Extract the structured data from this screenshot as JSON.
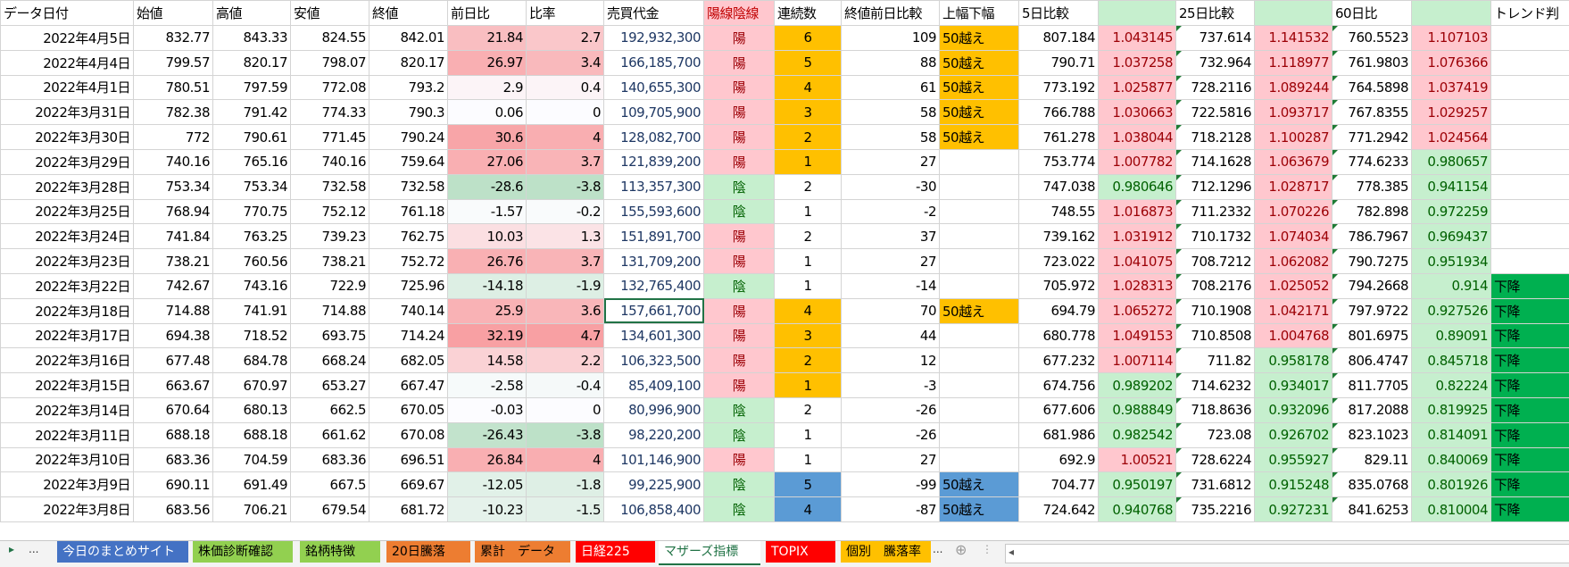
{
  "columns": [
    "データ日付",
    "始値",
    "高値",
    "安値",
    "終値",
    "前日比",
    "比率",
    "売買代金",
    "陽線陰線",
    "連続数",
    "終値前日比較",
    "上幅下幅",
    "5日比較",
    "",
    "25日比較",
    "",
    "60日比",
    "",
    "トレンド判"
  ],
  "colors": {
    "pink_bg": "#FFC7CE",
    "pink_text": "#9C0006",
    "green_bg": "#C6EFCE",
    "green_text": "#006100",
    "orange": "#FFC000",
    "blue": "#5B9BD5",
    "trend_green": "#00B050",
    "selected_border": "#217346"
  },
  "selected_cell": {
    "date": "2022年3月18日",
    "column": "売買代金"
  },
  "rows": [
    {
      "date": "2022年4月5日",
      "open": "832.77",
      "high": "843.33",
      "low": "824.55",
      "close": "842.01",
      "diff": "21.84",
      "ratio": "2.7",
      "volume": "192,932,300",
      "candle": "陽",
      "streak": "6",
      "streak_color": "orange",
      "close_diff": "109",
      "range": "50越え",
      "ma5": "807.184",
      "r5": "1.043145",
      "ma25": "737.614",
      "r25": "1.141532",
      "ma60": "760.5523",
      "r60": "1.107103",
      "trend": ""
    },
    {
      "date": "2022年4月4日",
      "open": "799.57",
      "high": "820.17",
      "low": "798.07",
      "close": "820.17",
      "diff": "26.97",
      "ratio": "3.4",
      "volume": "166,185,700",
      "candle": "陽",
      "streak": "5",
      "streak_color": "orange",
      "close_diff": "88",
      "range": "50越え",
      "ma5": "790.71",
      "r5": "1.037258",
      "ma25": "732.964",
      "r25": "1.118977",
      "ma60": "761.9803",
      "r60": "1.076366",
      "trend": ""
    },
    {
      "date": "2022年4月1日",
      "open": "780.51",
      "high": "797.59",
      "low": "772.08",
      "close": "793.2",
      "diff": "2.9",
      "ratio": "0.4",
      "volume": "140,655,300",
      "candle": "陽",
      "streak": "4",
      "streak_color": "orange",
      "close_diff": "61",
      "range": "50越え",
      "ma5": "773.192",
      "r5": "1.025877",
      "ma25": "728.2116",
      "r25": "1.089244",
      "ma60": "764.5898",
      "r60": "1.037419",
      "trend": ""
    },
    {
      "date": "2022年3月31日",
      "open": "782.38",
      "high": "791.42",
      "low": "774.33",
      "close": "790.3",
      "diff": "0.06",
      "ratio": "0",
      "volume": "109,705,900",
      "candle": "陽",
      "streak": "3",
      "streak_color": "orange",
      "close_diff": "58",
      "range": "50越え",
      "ma5": "766.788",
      "r5": "1.030663",
      "ma25": "722.5816",
      "r25": "1.093717",
      "ma60": "767.8355",
      "r60": "1.029257",
      "trend": ""
    },
    {
      "date": "2022年3月30日",
      "open": "772",
      "high": "790.61",
      "low": "771.45",
      "close": "790.24",
      "diff": "30.6",
      "ratio": "4",
      "volume": "128,082,700",
      "candle": "陽",
      "streak": "2",
      "streak_color": "orange",
      "close_diff": "58",
      "range": "50越え",
      "ma5": "761.278",
      "r5": "1.038044",
      "ma25": "718.2128",
      "r25": "1.100287",
      "ma60": "771.2942",
      "r60": "1.024564",
      "trend": ""
    },
    {
      "date": "2022年3月29日",
      "open": "740.16",
      "high": "765.16",
      "low": "740.16",
      "close": "759.64",
      "diff": "27.06",
      "ratio": "3.7",
      "volume": "121,839,200",
      "candle": "陽",
      "streak": "1",
      "streak_color": "orange",
      "close_diff": "27",
      "range": "",
      "ma5": "753.774",
      "r5": "1.007782",
      "ma25": "714.1628",
      "r25": "1.063679",
      "ma60": "774.6233",
      "r60": "0.980657",
      "trend": ""
    },
    {
      "date": "2022年3月28日",
      "open": "753.34",
      "high": "753.34",
      "low": "732.58",
      "close": "732.58",
      "diff": "-28.6",
      "ratio": "-3.8",
      "volume": "113,357,300",
      "candle": "陰",
      "streak": "2",
      "streak_color": "",
      "close_diff": "-30",
      "range": "",
      "ma5": "747.038",
      "r5": "0.980646",
      "ma25": "712.1296",
      "r25": "1.028717",
      "ma60": "778.385",
      "r60": "0.941154",
      "trend": ""
    },
    {
      "date": "2022年3月25日",
      "open": "768.94",
      "high": "770.75",
      "low": "752.12",
      "close": "761.18",
      "diff": "-1.57",
      "ratio": "-0.2",
      "volume": "155,593,600",
      "candle": "陰",
      "streak": "1",
      "streak_color": "",
      "close_diff": "-2",
      "range": "",
      "ma5": "748.55",
      "r5": "1.016873",
      "ma25": "711.2332",
      "r25": "1.070226",
      "ma60": "782.898",
      "r60": "0.972259",
      "trend": ""
    },
    {
      "date": "2022年3月24日",
      "open": "741.84",
      "high": "763.25",
      "low": "739.23",
      "close": "762.75",
      "diff": "10.03",
      "ratio": "1.3",
      "volume": "151,891,700",
      "candle": "陽",
      "streak": "2",
      "streak_color": "",
      "close_diff": "37",
      "range": "",
      "ma5": "739.162",
      "r5": "1.031912",
      "ma25": "710.1732",
      "r25": "1.074034",
      "ma60": "786.7967",
      "r60": "0.969437",
      "trend": ""
    },
    {
      "date": "2022年3月23日",
      "open": "738.21",
      "high": "760.56",
      "low": "738.21",
      "close": "752.72",
      "diff": "26.76",
      "ratio": "3.7",
      "volume": "131,709,200",
      "candle": "陽",
      "streak": "1",
      "streak_color": "",
      "close_diff": "27",
      "range": "",
      "ma5": "723.022",
      "r5": "1.041075",
      "ma25": "708.7212",
      "r25": "1.062082",
      "ma60": "790.7275",
      "r60": "0.951934",
      "trend": ""
    },
    {
      "date": "2022年3月22日",
      "open": "742.67",
      "high": "743.16",
      "low": "722.9",
      "close": "725.96",
      "diff": "-14.18",
      "ratio": "-1.9",
      "volume": "132,765,400",
      "candle": "陰",
      "streak": "1",
      "streak_color": "",
      "close_diff": "-14",
      "range": "",
      "ma5": "705.972",
      "r5": "1.028313",
      "ma25": "708.2176",
      "r25": "1.025052",
      "ma60": "794.2668",
      "r60": "0.914",
      "trend": "下降"
    },
    {
      "date": "2022年3月18日",
      "open": "714.88",
      "high": "741.91",
      "low": "714.88",
      "close": "740.14",
      "diff": "25.9",
      "ratio": "3.6",
      "volume": "157,661,700",
      "candle": "陽",
      "streak": "4",
      "streak_color": "orange",
      "close_diff": "70",
      "range": "50越え",
      "ma5": "694.79",
      "r5": "1.065272",
      "ma25": "710.1908",
      "r25": "1.042171",
      "ma60": "797.9722",
      "r60": "0.927526",
      "trend": "下降"
    },
    {
      "date": "2022年3月17日",
      "open": "694.38",
      "high": "718.52",
      "low": "693.75",
      "close": "714.24",
      "diff": "32.19",
      "ratio": "4.7",
      "volume": "134,601,300",
      "candle": "陽",
      "streak": "3",
      "streak_color": "orange",
      "close_diff": "44",
      "range": "",
      "ma5": "680.778",
      "r5": "1.049153",
      "ma25": "710.8508",
      "r25": "1.004768",
      "ma60": "801.6975",
      "r60": "0.89091",
      "trend": "下降"
    },
    {
      "date": "2022年3月16日",
      "open": "677.48",
      "high": "684.78",
      "low": "668.24",
      "close": "682.05",
      "diff": "14.58",
      "ratio": "2.2",
      "volume": "106,323,500",
      "candle": "陽",
      "streak": "2",
      "streak_color": "orange",
      "close_diff": "12",
      "range": "",
      "ma5": "677.232",
      "r5": "1.007114",
      "ma25": "711.82",
      "r25": "0.958178",
      "ma60": "806.4747",
      "r60": "0.845718",
      "trend": "下降"
    },
    {
      "date": "2022年3月15日",
      "open": "663.67",
      "high": "670.97",
      "low": "653.27",
      "close": "667.47",
      "diff": "-2.58",
      "ratio": "-0.4",
      "volume": "85,409,100",
      "candle": "陽",
      "streak": "1",
      "streak_color": "orange",
      "close_diff": "-3",
      "range": "",
      "ma5": "674.756",
      "r5": "0.989202",
      "ma25": "714.6232",
      "r25": "0.934017",
      "ma60": "811.7705",
      "r60": "0.82224",
      "trend": "下降"
    },
    {
      "date": "2022年3月14日",
      "open": "670.64",
      "high": "680.13",
      "low": "662.5",
      "close": "670.05",
      "diff": "-0.03",
      "ratio": "0",
      "volume": "80,996,900",
      "candle": "陰",
      "streak": "2",
      "streak_color": "",
      "close_diff": "-26",
      "range": "",
      "ma5": "677.606",
      "r5": "0.988849",
      "ma25": "718.8636",
      "r25": "0.932096",
      "ma60": "817.2088",
      "r60": "0.819925",
      "trend": "下降"
    },
    {
      "date": "2022年3月11日",
      "open": "688.18",
      "high": "688.18",
      "low": "661.62",
      "close": "670.08",
      "diff": "-26.43",
      "ratio": "-3.8",
      "volume": "98,220,200",
      "candle": "陰",
      "streak": "1",
      "streak_color": "",
      "close_diff": "-26",
      "range": "",
      "ma5": "681.986",
      "r5": "0.982542",
      "ma25": "723.08",
      "r25": "0.926702",
      "ma60": "823.1023",
      "r60": "0.814091",
      "trend": "下降"
    },
    {
      "date": "2022年3月10日",
      "open": "683.36",
      "high": "704.59",
      "low": "683.36",
      "close": "696.51",
      "diff": "26.84",
      "ratio": "4",
      "volume": "101,146,900",
      "candle": "陽",
      "streak": "1",
      "streak_color": "",
      "close_diff": "27",
      "range": "",
      "ma5": "692.9",
      "r5": "1.00521",
      "ma25": "728.6224",
      "r25": "0.955927",
      "ma60": "829.11",
      "r60": "0.840069",
      "trend": "下降"
    },
    {
      "date": "2022年3月9日",
      "open": "690.11",
      "high": "691.49",
      "low": "667.5",
      "close": "669.67",
      "diff": "-12.05",
      "ratio": "-1.8",
      "volume": "99,225,900",
      "candle": "陰",
      "streak": "5",
      "streak_color": "blue",
      "close_diff": "-99",
      "range": "50越え",
      "ma5": "704.77",
      "r5": "0.950197",
      "ma25": "731.6812",
      "r25": "0.915248",
      "ma60": "835.0768",
      "r60": "0.801926",
      "trend": "下降"
    },
    {
      "date": "2022年3月8日",
      "open": "683.56",
      "high": "706.21",
      "low": "679.54",
      "close": "681.72",
      "diff": "-10.23",
      "ratio": "-1.5",
      "volume": "106,858,400",
      "candle": "陰",
      "streak": "4",
      "streak_color": "blue",
      "close_diff": "-87",
      "range": "50越え",
      "ma5": "724.642",
      "r5": "0.940768",
      "ma25": "735.2216",
      "r25": "0.927231",
      "ma60": "841.6253",
      "r60": "0.810004",
      "trend": "下降"
    }
  ],
  "sheet_tabs": [
    {
      "label": "今日のまとめサイト",
      "bg": "#4472C4",
      "fg": "#FFFFFF"
    },
    {
      "label": "株価診断確認",
      "bg": "#92D050",
      "fg": "#000000"
    },
    {
      "label": "銘柄特徴",
      "bg": "#92D050",
      "fg": "#000000"
    },
    {
      "label": "20日騰落",
      "bg": "#ED7D31",
      "fg": "#000000"
    },
    {
      "label": "累計　データ",
      "bg": "#ED7D31",
      "fg": "#000000"
    },
    {
      "label": "日経225",
      "bg": "#FF0000",
      "fg": "#FFFFFF"
    },
    {
      "label": "マザーズ指標",
      "bg": "#FFFFFF",
      "fg": "#217346",
      "active": true
    },
    {
      "label": "TOPIX",
      "bg": "#FF0000",
      "fg": "#FFFFFF"
    },
    {
      "label": "個別　騰落率",
      "bg": "#FFC000",
      "fg": "#000000"
    }
  ],
  "tab_nav": {
    "next": "▸",
    "more": "...",
    "add": "⊕",
    "more_right": "...",
    "split": "⋮",
    "scroll_left": "◂"
  }
}
